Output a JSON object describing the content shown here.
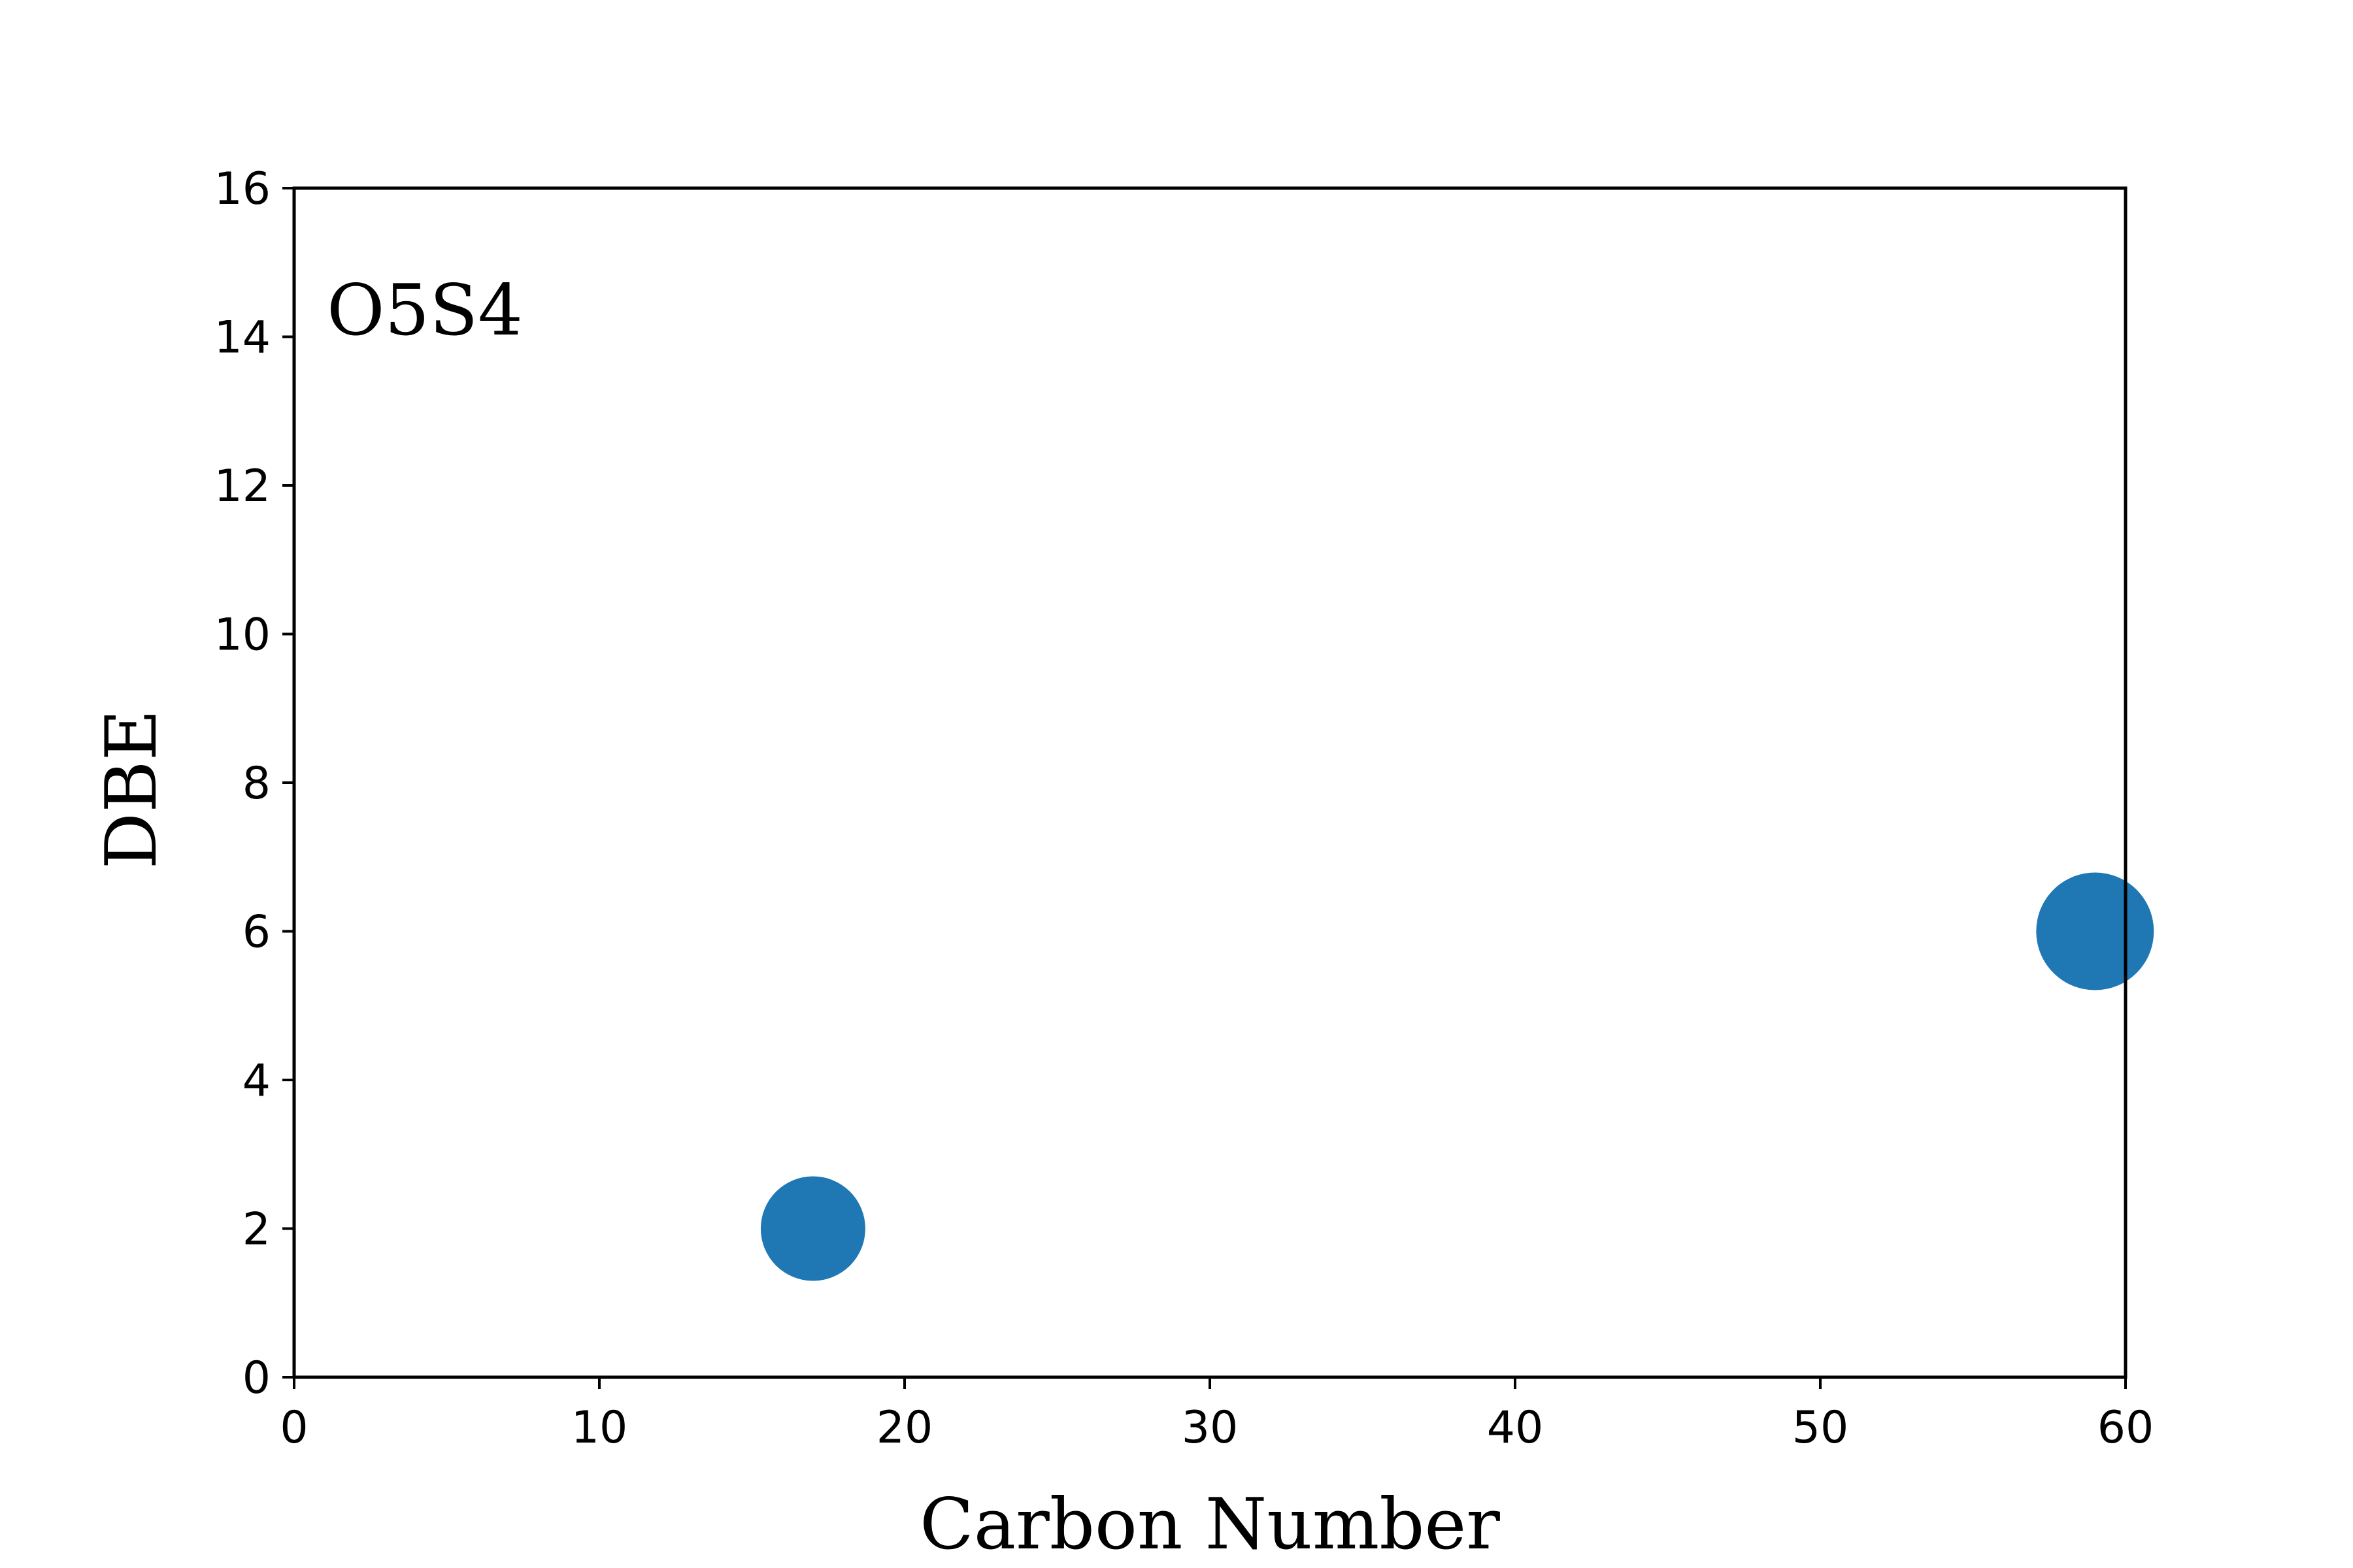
{
  "chart_data": {
    "type": "scatter",
    "annotation": "O5S4",
    "xlabel": "Carbon Number",
    "ylabel": "DBE",
    "xlim": [
      0,
      60
    ],
    "ylim": [
      0,
      16
    ],
    "x_ticks": [
      "0",
      "10",
      "20",
      "30",
      "40",
      "50",
      "60"
    ],
    "y_ticks": [
      "0",
      "2",
      "4",
      "6",
      "8",
      "10",
      "12",
      "14",
      "16"
    ],
    "grid": false,
    "legend": "none",
    "points": [
      {
        "x": 17,
        "y": 2,
        "size": "small"
      },
      {
        "x": 59,
        "y": 6,
        "size": "large"
      }
    ],
    "marker_color": "#1f77b4"
  }
}
